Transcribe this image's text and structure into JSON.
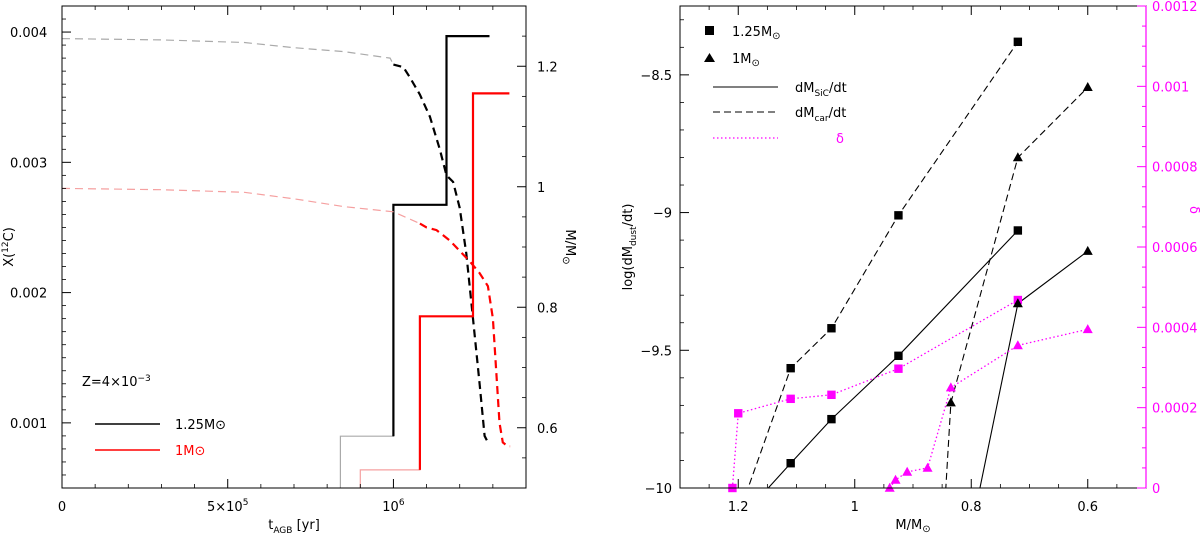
{
  "chart_data": [
    {
      "type": "line",
      "xlabel": "t",
      "xlabel_sub": "AGB",
      "xlabel_unit": " [yr]",
      "ylabel_left": "X(",
      "ylabel_left_sup": "12",
      "ylabel_left_end": "C)",
      "ylabel_right": "M/M",
      "ylabel_right_sym": "⊙",
      "xlim": [
        0,
        1400000
      ],
      "ylim_left": [
        0.0005,
        0.0042
      ],
      "ylim_right": [
        0.5,
        1.3
      ],
      "x_ticks": [
        {
          "value": 0,
          "label": "0"
        },
        {
          "value": 500000,
          "label": "5×10",
          "sup": "5"
        },
        {
          "value": 1000000,
          "label": "10",
          "sup": "6"
        }
      ],
      "y_left_ticks": [
        {
          "value": 0.001,
          "label": "0.001"
        },
        {
          "value": 0.002,
          "label": "0.002"
        },
        {
          "value": 0.003,
          "label": "0.003"
        },
        {
          "value": 0.004,
          "label": "0.004"
        }
      ],
      "y_right_ticks": [
        {
          "value": 0.6,
          "label": "0.6"
        },
        {
          "value": 0.8,
          "label": "0.8"
        },
        {
          "value": 1.0,
          "label": "1"
        },
        {
          "value": 1.2,
          "label": "1.2"
        }
      ],
      "legend_title": "Z=4×10",
      "legend_title_sup": "−3",
      "legend_position": "bottom-left",
      "series": [
        {
          "name": "1.25M⊙",
          "color": "#000000",
          "faint_color": "#aaaaaa",
          "mass": [
            [
              840000,
              0.5
            ],
            [
              840000,
              0.586
            ],
            [
              1000000,
              0.586
            ],
            [
              1000000,
              0.97
            ],
            [
              1160000,
              0.97
            ],
            [
              1160000,
              1.25
            ],
            [
              1290000,
              1.25
            ]
          ],
          "mass_bright_from": 1000000,
          "carbon": [
            [
              0,
              0.00395
            ],
            [
              300000,
              0.00394
            ],
            [
              550000,
              0.00392
            ],
            [
              700000,
              0.00388
            ],
            [
              850000,
              0.00385
            ],
            [
              990000,
              0.0038
            ],
            [
              1000000,
              0.00375
            ],
            [
              1030000,
              0.00373
            ],
            [
              1050000,
              0.00365
            ],
            [
              1080000,
              0.00352
            ],
            [
              1110000,
              0.00335
            ],
            [
              1140000,
              0.0031
            ],
            [
              1160000,
              0.0029
            ],
            [
              1180000,
              0.00285
            ],
            [
              1200000,
              0.00265
            ],
            [
              1220000,
              0.0023
            ],
            [
              1240000,
              0.0018
            ],
            [
              1260000,
              0.0013
            ],
            [
              1275000,
              0.0009
            ],
            [
              1285000,
              0.00085
            ],
            [
              1292000,
              0.00085
            ]
          ],
          "carbon_bright_from": 1000000
        },
        {
          "name": "1M⊙",
          "color": "#ff0000",
          "faint_color": "#f5a0a0",
          "mass": [
            [
              900000,
              0.5
            ],
            [
              900000,
              0.53
            ],
            [
              1080000,
              0.53
            ],
            [
              1080000,
              0.785
            ],
            [
              1240000,
              0.785
            ],
            [
              1240000,
              1.155
            ],
            [
              1350000,
              1.155
            ]
          ],
          "mass_bright_from": 1080000,
          "carbon": [
            [
              0,
              0.0028
            ],
            [
              300000,
              0.00279
            ],
            [
              550000,
              0.00277
            ],
            [
              700000,
              0.00272
            ],
            [
              850000,
              0.00266
            ],
            [
              1000000,
              0.00262
            ],
            [
              1080000,
              0.00253
            ],
            [
              1100000,
              0.0025
            ],
            [
              1130000,
              0.00248
            ],
            [
              1170000,
              0.0024
            ],
            [
              1200000,
              0.00232
            ],
            [
              1230000,
              0.00224
            ],
            [
              1260000,
              0.00215
            ],
            [
              1285000,
              0.00205
            ],
            [
              1300000,
              0.0018
            ],
            [
              1310000,
              0.0014
            ],
            [
              1320000,
              0.001
            ],
            [
              1330000,
              0.00085
            ],
            [
              1345000,
              0.00082
            ],
            [
              1352000,
              0.00082
            ]
          ],
          "carbon_bright_from": 1080000
        }
      ]
    },
    {
      "type": "line",
      "xlabel": "M/M",
      "xlabel_sym": "⊙",
      "ylabel_left": "log(dM",
      "ylabel_left_sub": "dust",
      "ylabel_left_end": "/dt)",
      "ylabel_right": "δ",
      "xlim": [
        1.3,
        0.5
      ],
      "ylim_left": [
        -10,
        -8.25
      ],
      "ylim_right": [
        0,
        0.0012
      ],
      "x_ticks": [
        {
          "value": 1.2,
          "label": "1.2"
        },
        {
          "value": 1.0,
          "label": "1"
        },
        {
          "value": 0.8,
          "label": "0.8"
        },
        {
          "value": 0.6,
          "label": "0.6"
        }
      ],
      "y_left_ticks": [
        {
          "value": -10,
          "label": "−10"
        },
        {
          "value": -9.5,
          "label": "−9.5"
        },
        {
          "value": -9,
          "label": "−9"
        },
        {
          "value": -8.5,
          "label": "−8.5"
        }
      ],
      "y_right_ticks": [
        {
          "value": 0,
          "label": "0"
        },
        {
          "value": 0.0002,
          "label": "0.0002"
        },
        {
          "value": 0.0004,
          "label": "0.0004"
        },
        {
          "value": 0.0006,
          "label": "0.0006"
        },
        {
          "value": 0.0008,
          "label": "0.0008"
        },
        {
          "value": 0.001,
          "label": "0.001"
        },
        {
          "value": 0.0012,
          "label": "0.0012"
        }
      ],
      "legend_position": "top-left",
      "legend": [
        {
          "marker": "square",
          "label": "1.25M",
          "sym": "⊙"
        },
        {
          "marker": "triangle",
          "label": "1M",
          "sym": "⊙"
        },
        {
          "line": "solid",
          "label": "dM",
          "sub": "SiC",
          "end": "/dt"
        },
        {
          "line": "dashed",
          "label": "dM",
          "sub": "car",
          "end": "/dt"
        },
        {
          "line": "dotted",
          "label": "δ",
          "color": "#ff00ff"
        }
      ],
      "series": [
        {
          "name": "1.25M⊙ dM_SiC/dt",
          "marker": "square",
          "style": "solid",
          "color": "#000000",
          "axis": "left",
          "points": [
            [
              1.2,
              -10.12
            ],
            [
              1.11,
              -9.91
            ],
            [
              1.04,
              -9.75
            ],
            [
              0.925,
              -9.52
            ],
            [
              0.72,
              -9.065
            ]
          ]
        },
        {
          "name": "1.25M⊙ dM_car/dt",
          "marker": "square",
          "style": "dashed",
          "color": "#000000",
          "axis": "left",
          "points": [
            [
              1.2,
              -10.1
            ],
            [
              1.11,
              -9.565
            ],
            [
              1.04,
              -9.42
            ],
            [
              0.925,
              -9.01
            ],
            [
              0.72,
              -8.38
            ]
          ]
        },
        {
          "name": "1.25M⊙ δ",
          "marker": "square",
          "style": "dotted",
          "color": "#ff00ff",
          "axis": "right",
          "points": [
            [
              1.21,
              0.0
            ],
            [
              1.2,
              0.000186
            ],
            [
              1.11,
              0.000222
            ],
            [
              1.04,
              0.000232
            ],
            [
              0.925,
              0.000297
            ],
            [
              0.72,
              0.000468
            ]
          ]
        },
        {
          "name": "1M⊙ dM_SiC/dt",
          "marker": "triangle",
          "style": "solid",
          "color": "#000000",
          "axis": "left",
          "points": [
            [
              0.79,
              -10.05
            ],
            [
              0.72,
              -9.33
            ],
            [
              0.6,
              -9.14
            ]
          ]
        },
        {
          "name": "1M⊙ dM_car/dt",
          "marker": "triangle",
          "style": "dashed",
          "color": "#000000",
          "axis": "left",
          "points": [
            [
              0.845,
              -10.05
            ],
            [
              0.835,
              -9.69
            ],
            [
              0.72,
              -8.8
            ],
            [
              0.6,
              -8.545
            ]
          ]
        },
        {
          "name": "1M⊙ δ",
          "marker": "triangle",
          "style": "dotted",
          "color": "#ff00ff",
          "axis": "right",
          "points": [
            [
              0.94,
              0.0
            ],
            [
              0.93,
              2e-05
            ],
            [
              0.91,
              4e-05
            ],
            [
              0.875,
              5e-05
            ],
            [
              0.835,
              0.00025
            ],
            [
              0.72,
              0.000355
            ],
            [
              0.6,
              0.000395
            ]
          ]
        }
      ]
    }
  ]
}
